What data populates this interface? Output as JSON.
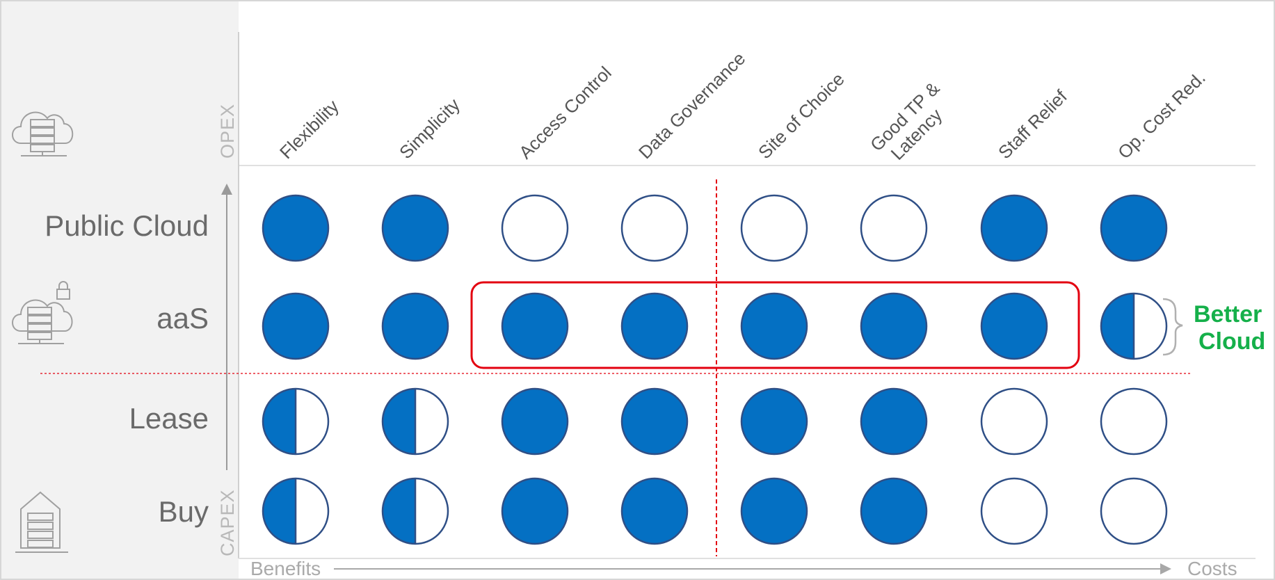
{
  "columns": [
    {
      "label": "Flexibility"
    },
    {
      "label": "Simplicity"
    },
    {
      "label": "Access Control"
    },
    {
      "label": "Data Governance"
    },
    {
      "label": "Site of Choice"
    },
    {
      "label": "Good TP &",
      "label2": "Latency"
    },
    {
      "label": "Staff Relief"
    },
    {
      "label": "Op. Cost Red."
    }
  ],
  "rows": [
    {
      "label": "Public Cloud",
      "icon": "cloud-server-icon",
      "values": [
        "full",
        "full",
        "empty",
        "empty",
        "empty",
        "empty",
        "full",
        "full"
      ]
    },
    {
      "label": "aaS",
      "icon": "secure-cloud-server-icon",
      "values": [
        "full",
        "full",
        "full",
        "full",
        "full",
        "full",
        "full",
        "half"
      ]
    },
    {
      "label": "Lease",
      "icon": "",
      "values": [
        "half",
        "half",
        "full",
        "full",
        "full",
        "full",
        "empty",
        "empty"
      ]
    },
    {
      "label": "Buy",
      "icon": "on-premise-server-icon",
      "values": [
        "half",
        "half",
        "full",
        "full",
        "full",
        "full",
        "empty",
        "empty"
      ]
    }
  ],
  "axis": {
    "top": "OPEX",
    "bottom": "CAPEX",
    "left_bottom": "Benefits",
    "right_bottom": "Costs"
  },
  "annotation": {
    "line1": "Better",
    "line2": "Cloud"
  },
  "colors": {
    "fill": "#0470c3",
    "stroke": "#2f4f86",
    "highlight": "#e3000f",
    "note": "#15b04a",
    "sidebar": "#f2f2f2"
  }
}
